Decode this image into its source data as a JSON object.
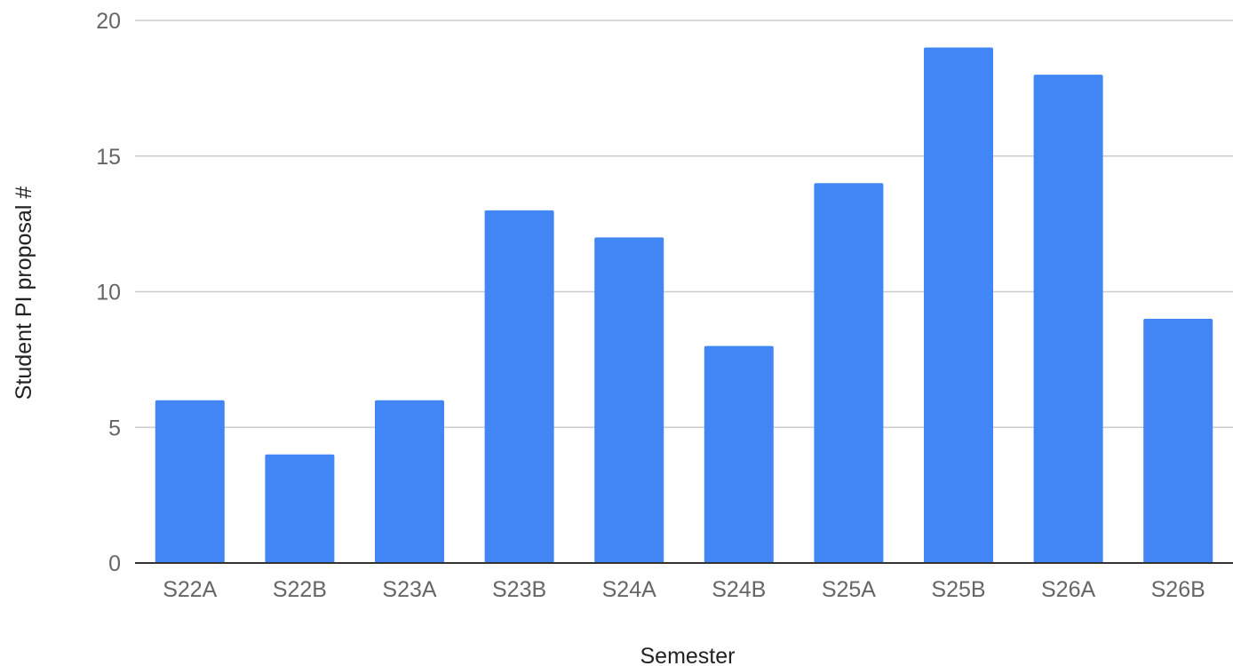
{
  "chart_data": {
    "type": "bar",
    "title": "",
    "xlabel": "Semester",
    "ylabel": "Student PI proposal #",
    "categories": [
      "S22A",
      "S22B",
      "S23A",
      "S23B",
      "S24A",
      "S24B",
      "S25A",
      "S25B",
      "S26A",
      "S26B"
    ],
    "values": [
      6,
      4,
      6,
      13,
      12,
      8,
      14,
      19,
      18,
      9
    ],
    "ylim": [
      0,
      20
    ],
    "yticks": [
      0,
      5,
      10,
      15,
      20
    ],
    "grid": true,
    "legend": "none",
    "bar_color": "#4285f4"
  }
}
